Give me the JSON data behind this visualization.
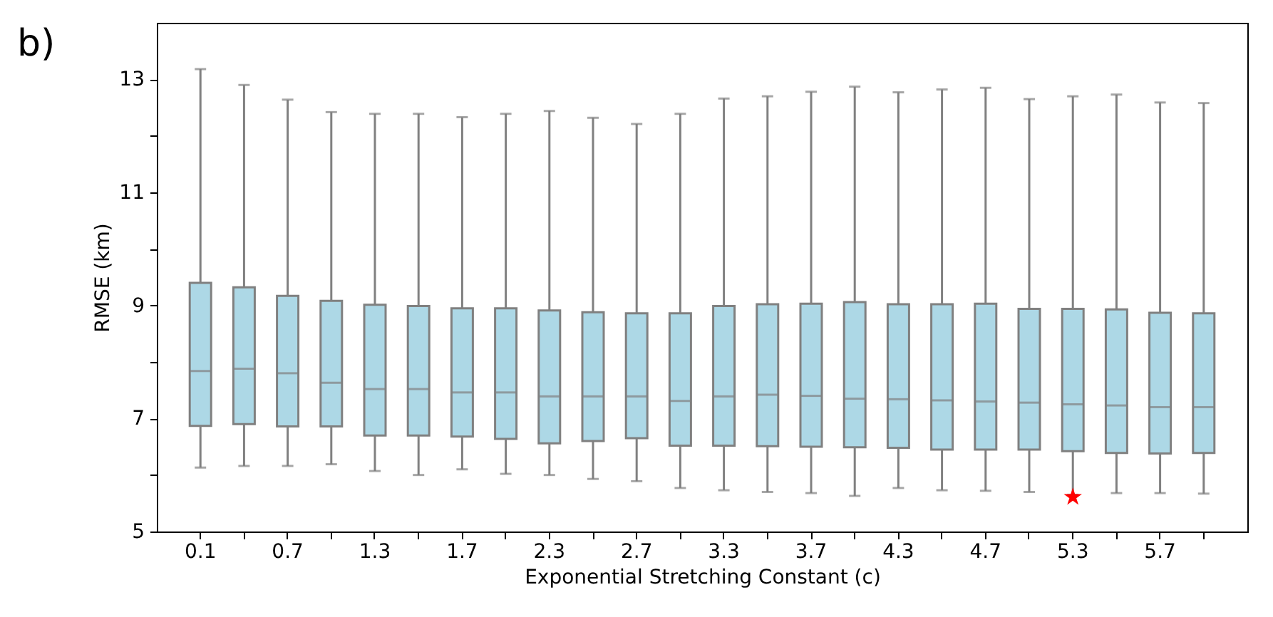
{
  "chart_data": {
    "type": "box",
    "annotations": [
      "b)"
    ],
    "xlabel": "Exponential Stretching Constant (c)",
    "ylabel": "RMSE (km)",
    "categories": [
      "0.1",
      null,
      "0.7",
      null,
      "1.3",
      null,
      "1.7",
      null,
      "2.3",
      null,
      "2.7",
      null,
      "3.3",
      null,
      "3.7",
      null,
      "4.3",
      null,
      "4.7",
      null,
      "5.3",
      null,
      "5.7",
      null
    ],
    "ylim": [
      5,
      14
    ],
    "yticks": [
      5,
      {
        "value": 6,
        "label": null
      },
      7,
      {
        "value": 8,
        "label": null
      },
      9,
      {
        "value": 10,
        "label": null
      },
      11,
      {
        "value": 12,
        "label": null
      },
      13
    ],
    "grid": false,
    "series": [
      {
        "type": "box",
        "color": "#add8e6",
        "boxes": [
          {
            "low": 6.13,
            "q1": 6.87,
            "median": 7.84,
            "q3": 9.4,
            "high": 13.18
          },
          {
            "low": 6.16,
            "q1": 6.9,
            "median": 7.88,
            "q3": 9.32,
            "high": 12.9
          },
          {
            "low": 6.16,
            "q1": 6.86,
            "median": 7.8,
            "q3": 9.17,
            "high": 12.64
          },
          {
            "low": 6.19,
            "q1": 6.86,
            "median": 7.63,
            "q3": 9.08,
            "high": 12.42
          },
          {
            "low": 6.07,
            "q1": 6.7,
            "median": 7.52,
            "q3": 9.01,
            "high": 12.39
          },
          {
            "low": 6.0,
            "q1": 6.7,
            "median": 7.52,
            "q3": 8.99,
            "high": 12.39
          },
          {
            "low": 6.1,
            "q1": 6.68,
            "median": 7.46,
            "q3": 8.95,
            "high": 12.33
          },
          {
            "low": 6.02,
            "q1": 6.64,
            "median": 7.46,
            "q3": 8.95,
            "high": 12.39
          },
          {
            "low": 6.0,
            "q1": 6.56,
            "median": 7.39,
            "q3": 8.91,
            "high": 12.44
          },
          {
            "low": 5.93,
            "q1": 6.6,
            "median": 7.39,
            "q3": 8.88,
            "high": 12.32
          },
          {
            "low": 5.89,
            "q1": 6.65,
            "median": 7.39,
            "q3": 8.86,
            "high": 12.21
          },
          {
            "low": 5.77,
            "q1": 6.52,
            "median": 7.31,
            "q3": 8.86,
            "high": 12.39
          },
          {
            "low": 5.73,
            "q1": 6.52,
            "median": 7.39,
            "q3": 8.99,
            "high": 12.66
          },
          {
            "low": 5.7,
            "q1": 6.51,
            "median": 7.42,
            "q3": 9.02,
            "high": 12.7
          },
          {
            "low": 5.68,
            "q1": 6.5,
            "median": 7.4,
            "q3": 9.03,
            "high": 12.78
          },
          {
            "low": 5.63,
            "q1": 6.49,
            "median": 7.35,
            "q3": 9.06,
            "high": 12.87
          },
          {
            "low": 5.77,
            "q1": 6.48,
            "median": 7.34,
            "q3": 9.02,
            "high": 12.77
          },
          {
            "low": 5.73,
            "q1": 6.45,
            "median": 7.32,
            "q3": 9.02,
            "high": 12.82
          },
          {
            "low": 5.72,
            "q1": 6.45,
            "median": 7.3,
            "q3": 9.03,
            "high": 12.85
          },
          {
            "low": 5.7,
            "q1": 6.45,
            "median": 7.28,
            "q3": 8.94,
            "high": 12.65
          },
          {
            "low": 5.65,
            "q1": 6.42,
            "median": 7.25,
            "q3": 8.94,
            "high": 12.7
          },
          {
            "low": 5.68,
            "q1": 6.39,
            "median": 7.23,
            "q3": 8.93,
            "high": 12.73
          },
          {
            "low": 5.68,
            "q1": 6.38,
            "median": 7.2,
            "q3": 8.87,
            "high": 12.59
          },
          {
            "low": 5.67,
            "q1": 6.39,
            "median": 7.2,
            "q3": 8.86,
            "high": 12.58
          }
        ]
      },
      {
        "type": "scatter",
        "x": [
          "5.3"
        ],
        "values": [
          5.61
        ],
        "color": "#ff0000",
        "marker": "star"
      }
    ]
  }
}
